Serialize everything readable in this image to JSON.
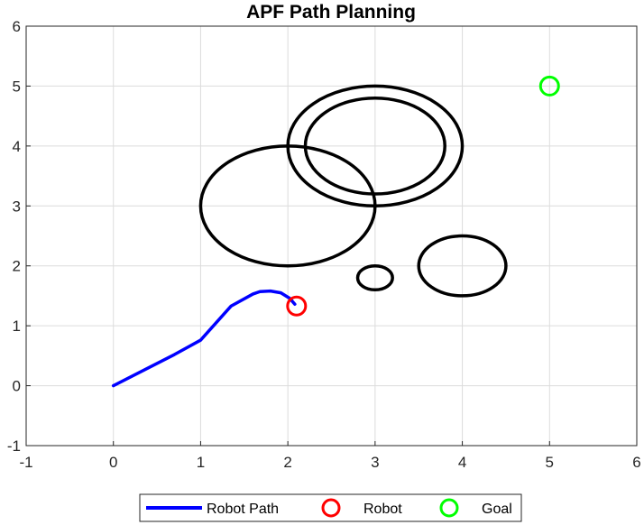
{
  "chart_data": {
    "type": "line",
    "title": "APF Path Planning",
    "xlabel": "",
    "ylabel": "",
    "xlim": [
      -1,
      6
    ],
    "ylim": [
      -1,
      6
    ],
    "xticks": [
      -1,
      0,
      1,
      2,
      3,
      4,
      5,
      6
    ],
    "yticks": [
      -1,
      0,
      1,
      2,
      3,
      4,
      5,
      6
    ],
    "grid": true,
    "legend_position": "bottom-outside",
    "series": [
      {
        "name": "Robot Path",
        "color": "#0000ff",
        "points": [
          [
            0,
            0
          ],
          [
            0.35,
            0.26
          ],
          [
            0.7,
            0.52
          ],
          [
            1.0,
            0.76
          ],
          [
            1.35,
            1.33
          ],
          [
            1.6,
            1.53
          ],
          [
            1.68,
            1.57
          ],
          [
            1.8,
            1.58
          ],
          [
            1.92,
            1.55
          ],
          [
            2.02,
            1.46
          ],
          [
            2.08,
            1.36
          ]
        ]
      },
      {
        "name": "Robot",
        "color": "#ff0000",
        "marker": "circle",
        "x": 2.1,
        "y": 1.33
      },
      {
        "name": "Goal",
        "color": "#00ff00",
        "marker": "circle",
        "x": 5.0,
        "y": 5.0
      }
    ],
    "obstacles": [
      {
        "cx": 2.0,
        "cy": 3.0,
        "r": 1.0
      },
      {
        "cx": 3.0,
        "cy": 4.0,
        "r": 0.8
      },
      {
        "cx": 3.0,
        "cy": 4.0,
        "r": 1.0
      },
      {
        "cx": 4.0,
        "cy": 2.0,
        "r": 0.5
      },
      {
        "cx": 3.0,
        "cy": 1.8,
        "r": 0.2
      }
    ],
    "obstacle_color": "#000000"
  }
}
